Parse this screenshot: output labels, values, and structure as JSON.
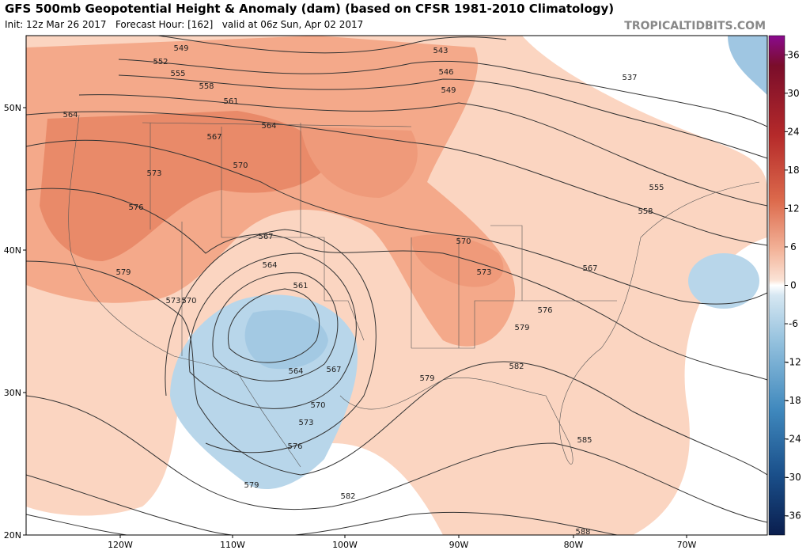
{
  "header": {
    "title": "GFS 500mb Geopotential Height & Anomaly (dam) (based on CFSR 1981-2010 Climatology)",
    "subtitle": "Init: 12z Mar 26 2017   Forecast Hour: [162]   valid at 06z Sun, Apr 02 2017",
    "watermark": "TROPICALTIDBITS.COM"
  },
  "map": {
    "latitudes": [
      "50N",
      "40N",
      "30N",
      "20N"
    ],
    "longitudes": [
      "120W",
      "110W",
      "100W",
      "90W",
      "80W",
      "70W"
    ],
    "contour_labels": [
      549,
      552,
      555,
      558,
      561,
      564,
      567,
      570,
      573,
      576,
      579,
      573,
      570,
      567,
      564,
      561,
      564,
      567,
      570,
      573,
      576,
      579,
      582,
      579,
      570,
      573,
      576,
      579,
      582,
      585,
      588,
      543,
      546,
      549,
      537,
      564,
      555,
      558,
      567
    ]
  },
  "colorbar": {
    "ticks": [
      36,
      30,
      24,
      18,
      12,
      6,
      0,
      -6,
      -12,
      -18,
      -24,
      -30,
      -36
    ],
    "range": [
      -39,
      39
    ]
  }
}
